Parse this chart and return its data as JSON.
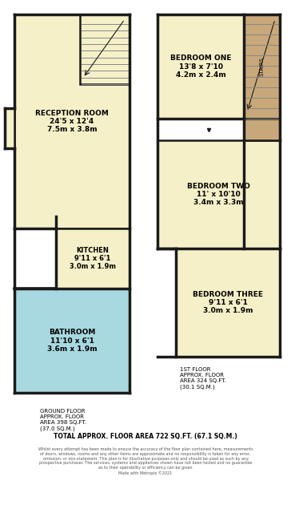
{
  "bg_color": "#ffffff",
  "wall_color": "#1a1a1a",
  "cream": "#f5f0c8",
  "blue": "#a8d8e0",
  "tan": "#c8a87a",
  "stairs_bg": "#e8e8e8",
  "rooms": {
    "reception": "RECEPTION ROOM\n24'5 x 12'4\n7.5m x 3.8m",
    "kitchen": "KITCHEN\n9'11 x 6'1\n3.0m x 1.9m",
    "bathroom": "BATHROOM\n11'10 x 6'1\n3.6m x 1.9m",
    "bed1": "BEDROOM ONE\n13'8 x 7'10\n4.2m x 2.4m",
    "bed2": "BEDROOM TWO\n11' x 10'10\n3.4m x 3.3m",
    "bed3": "BEDROOM THREE\n9'11 x 6'1\n3.0m x 1.9m"
  },
  "ground_floor_text": "GROUND FLOOR\nAPPROX. FLOOR\nAREA 398 SQ.FT.\n(37.0 SQ.M.)",
  "first_floor_text": "1ST FLOOR\nAPPROX. FLOOR\nAREA 324 SQ.FT.\n(30.1 SQ.M.)",
  "total_text": "TOTAL APPROX. FLOOR AREA 722 SQ.FT. (67.1 SQ.M.)",
  "disclaimer": "Whilst every attempt has been made to ensure the accuracy of the floor plan contained here, measurements\nof doors, windows, rooms and any other items are approximate and no responsibility is taken for any error,\nomission, or mis-statement. This plan is for illustrative purposes only and should be used as such by any\nprospective purchaser. The services, systems and appliances shown have not been tested and no guarantee\nas to their operability or efficiency can be given\nMade with Metropix ©2021"
}
